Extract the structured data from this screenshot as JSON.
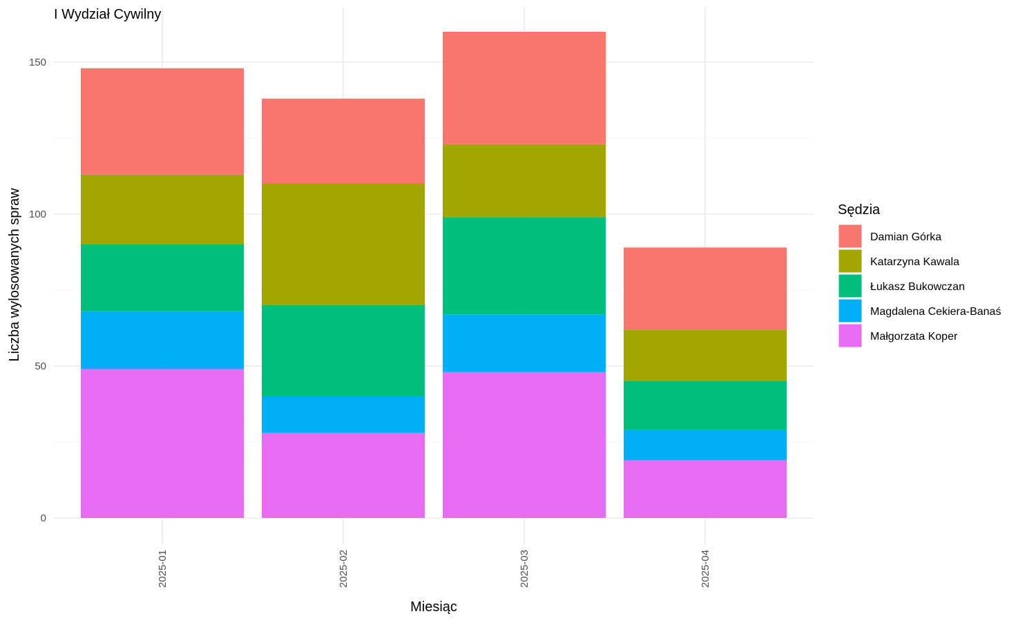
{
  "chart_data": {
    "type": "bar",
    "stacked": true,
    "title": "I Wydział Cywilny",
    "xlabel": "Miesiąc",
    "ylabel": "Liczba wylosowanych spraw",
    "categories": [
      "2025-01",
      "2025-02",
      "2025-03",
      "2025-04"
    ],
    "ylim": [
      0,
      160
    ],
    "yticks": [
      0,
      50,
      100,
      150
    ],
    "grid": true,
    "legend": {
      "title": "Sędzia",
      "placement": "right"
    },
    "series": [
      {
        "name": "Małgorzata Koper",
        "color": "#E76BF3",
        "values": [
          49,
          28,
          48,
          19
        ]
      },
      {
        "name": "Magdalena Cekiera-Banaś",
        "color": "#00B0F6",
        "values": [
          19,
          12,
          19,
          10
        ]
      },
      {
        "name": "Łukasz Bukowczan",
        "color": "#00BF7D",
        "values": [
          22,
          30,
          32,
          16
        ]
      },
      {
        "name": "Katarzyna Kawala",
        "color": "#A3A500",
        "values": [
          23,
          40,
          24,
          17
        ]
      },
      {
        "name": "Damian Górka",
        "color": "#F8766D",
        "values": [
          35,
          28,
          37,
          27
        ]
      }
    ],
    "legend_order": [
      "Damian Górka",
      "Katarzyna Kawala",
      "Łukasz Bukowczan",
      "Magdalena Cekiera-Banaś",
      "Małgorzata Koper"
    ]
  }
}
